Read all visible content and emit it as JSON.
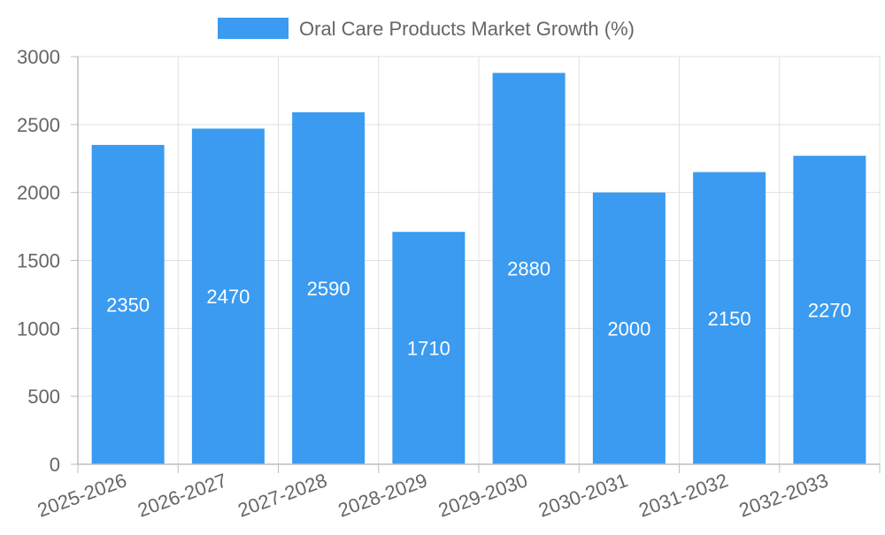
{
  "chart_data": {
    "type": "bar",
    "categories": [
      "2025-2026",
      "2026-2027",
      "2027-2028",
      "2028-2029",
      "2029-2030",
      "2030-2031",
      "2031-2032",
      "2032-2033"
    ],
    "series": [
      {
        "name": "Oral Care Products Market Growth (%)",
        "values": [
          2350,
          2470,
          2590,
          1710,
          2880,
          2000,
          2150,
          2270
        ]
      }
    ],
    "ylim": [
      0,
      3000
    ],
    "yticks": [
      0,
      500,
      1000,
      1500,
      2000,
      2500,
      3000
    ],
    "grid": true,
    "legend_position": "top-center",
    "data_labels": true
  },
  "colors": {
    "bar": "#3a9bf0"
  }
}
